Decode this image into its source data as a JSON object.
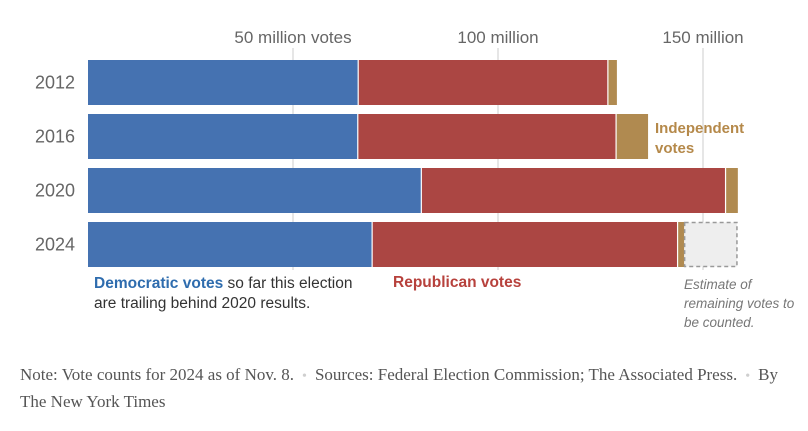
{
  "chart_data": {
    "type": "bar",
    "orientation": "horizontal",
    "stacked": true,
    "categories": [
      "2012",
      "2016",
      "2020",
      "2024"
    ],
    "series": [
      {
        "name": "Democratic votes",
        "color": "#4572b1",
        "values": [
          65.9,
          65.8,
          81.3,
          69.3
        ]
      },
      {
        "name": "Republican votes",
        "color": "#ab4643",
        "values": [
          60.9,
          63.0,
          74.2,
          74.5
        ]
      },
      {
        "name": "Independent votes",
        "color": "#b08a50",
        "values": [
          2.2,
          7.8,
          3.0,
          1.6
        ]
      },
      {
        "name": "Estimate of remaining votes to be counted.",
        "color": "#eeeeee",
        "values": [
          0,
          0,
          0,
          13.0
        ]
      }
    ],
    "xlim": [
      0,
      160
    ],
    "tick_values": [
      50,
      100,
      150
    ],
    "tick_labels": [
      "50 million votes",
      "100 million",
      "150 million"
    ],
    "grid": true,
    "labels": {
      "independent": [
        "Independent",
        "votes"
      ],
      "democratic_bold": "Democratic votes",
      "democratic_rest1": " so far this election",
      "democratic_rest2": "are trailing behind 2020 results.",
      "republican": "Republican votes",
      "remaining": [
        "Estimate of",
        "remaining votes to",
        "be counted."
      ]
    }
  },
  "footer": {
    "note": "Note: Vote counts for 2024 as of Nov. 8.",
    "sources": "Sources: Federal Election Commission; The Associated Press.",
    "byline": "By The New York Times",
    "separator": "•"
  }
}
